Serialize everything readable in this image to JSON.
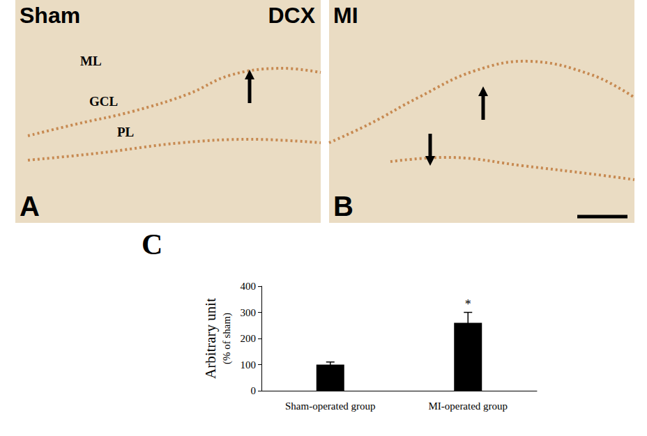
{
  "panels": [
    {
      "label": "A",
      "title": "Sham",
      "stain": "DCX",
      "layers": [
        "ML",
        "GCL",
        "PL"
      ]
    },
    {
      "label": "B",
      "title": "MI"
    }
  ],
  "chart_data": {
    "type": "bar",
    "panel_label": "C",
    "ylabel": "Arbitrary unit",
    "ylabel_note": "(% of sham)",
    "categories": [
      "Sham-operated group",
      "MI-operated group"
    ],
    "values": [
      100,
      260
    ],
    "errors": [
      10,
      40
    ],
    "color": "#000000",
    "ylim": [
      0,
      400
    ],
    "yticks": [
      0,
      100,
      200,
      300,
      400
    ],
    "grid": false,
    "annotations": [
      {
        "category": "MI-operated group",
        "text": "*"
      }
    ]
  }
}
